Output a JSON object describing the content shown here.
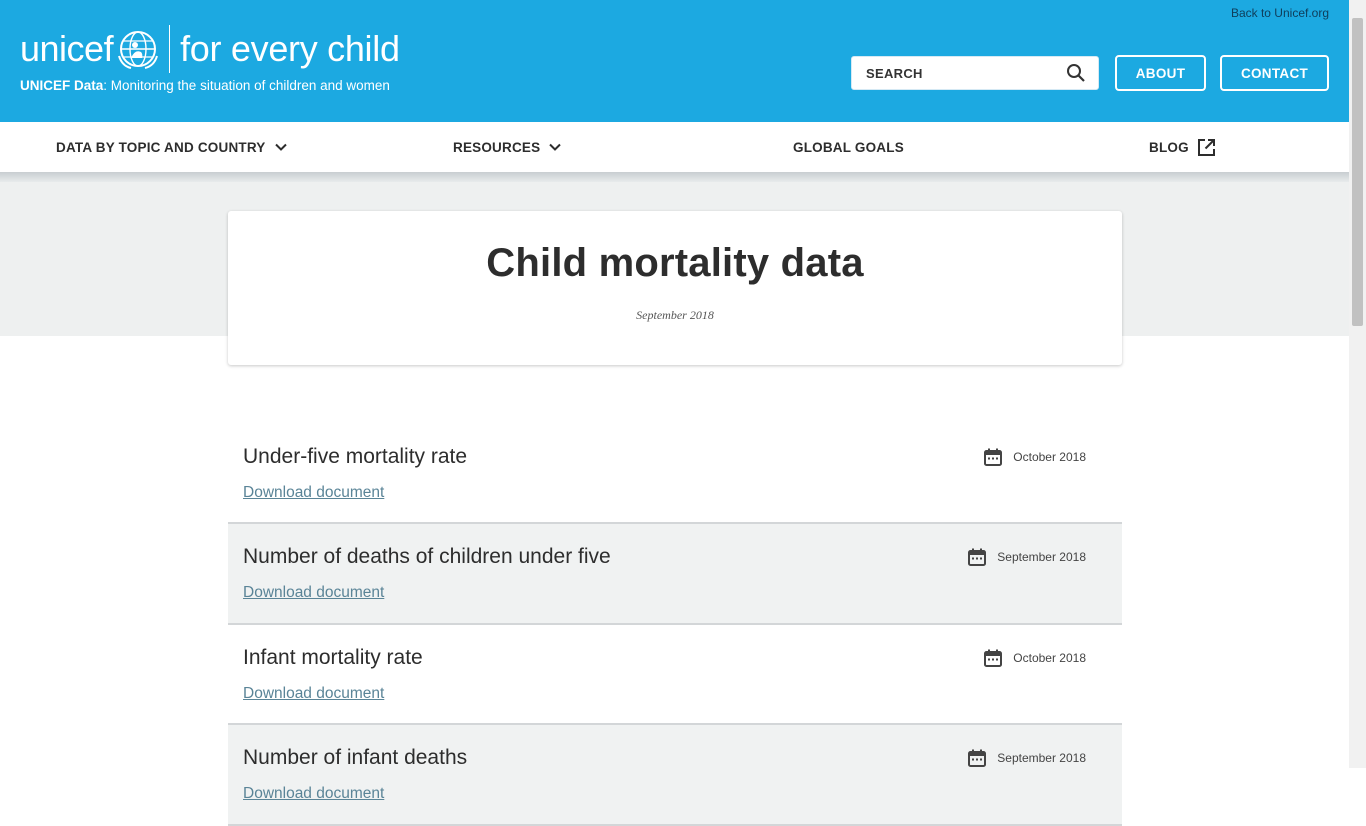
{
  "header": {
    "back_link": "Back to Unicef.org",
    "logo_word": "unicef",
    "tagline": "for every child",
    "subline_bold": "UNICEF Data",
    "subline_rest": ": Monitoring the situation of children and women",
    "search": {
      "placeholder": "SEARCH",
      "icon": "search-icon"
    },
    "about_label": "ABOUT",
    "contact_label": "CONTACT",
    "brand_color": "#1ca9e1"
  },
  "nav": {
    "items": [
      {
        "label": "DATA BY TOPIC AND COUNTRY",
        "icon": "chevron-down-icon"
      },
      {
        "label": "RESOURCES",
        "icon": "chevron-down-icon"
      },
      {
        "label": "GLOBAL GOALS"
      },
      {
        "label": "BLOG",
        "icon": "external-link-icon"
      }
    ]
  },
  "hero": {
    "title": "Child mortality data",
    "date": "September 2018"
  },
  "documents": [
    {
      "title": "Under-five mortality rate",
      "link": "Download document",
      "date": "October 2018"
    },
    {
      "title": "Number of deaths of children under five",
      "link": "Download document",
      "date": "September 2018"
    },
    {
      "title": "Infant mortality rate",
      "link": "Download document",
      "date": "October 2018"
    },
    {
      "title": "Number of infant deaths",
      "link": "Download document",
      "date": "September 2018"
    }
  ]
}
